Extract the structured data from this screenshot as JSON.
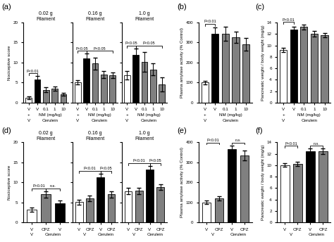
{
  "chart_data": [
    {
      "type": "bar",
      "panel_label": "(a)",
      "title": "0.02 g\nFilament",
      "ylabel": "Nociceptive score",
      "categories": [
        "V",
        "V",
        "0.1",
        "1",
        "10"
      ],
      "values": [
        1.2,
        5.8,
        3.2,
        3.5,
        2.1
      ],
      "errors": [
        0.3,
        0.8,
        0.6,
        0.5,
        0.4
      ],
      "colors": [
        "white",
        "black",
        "gray",
        "gray",
        "gray"
      ],
      "ylim": [
        0,
        20
      ],
      "yticks": [
        0,
        5,
        10,
        15,
        20
      ],
      "annotations": [
        {
          "text": "P<0.01",
          "span": [
            0,
            1
          ]
        }
      ],
      "x_groups": [
        [
          {
            "text": "+",
            "span": [
              0,
              0
            ]
          },
          {
            "text": "NM (mg/kg)",
            "span": [
              1,
              4
            ]
          }
        ],
        [
          {
            "text": "V",
            "span": [
              0,
              0
            ]
          },
          {
            "text": "Cerulein",
            "span": [
              1,
              4
            ]
          }
        ]
      ]
    },
    {
      "type": "bar",
      "title": "0.16 g\nFilament",
      "tick_labels": "x",
      "categories": [
        "V",
        "V",
        "0.1",
        "1",
        "10"
      ],
      "values": [
        5.1,
        11.0,
        9.8,
        7.0,
        6.8
      ],
      "errors": [
        0.5,
        1.2,
        1.5,
        0.8,
        0.7
      ],
      "colors": [
        "white",
        "black",
        "gray",
        "gray",
        "gray"
      ],
      "ylim": [
        0,
        20
      ],
      "yticks": [
        0,
        5,
        10,
        15,
        20
      ],
      "annotations": [
        {
          "text": "P<0.05",
          "span": [
            0,
            1
          ]
        },
        {
          "text": "P<0.05",
          "span": [
            1,
            4
          ]
        }
      ],
      "x_groups": [
        [
          {
            "text": "+",
            "span": [
              0,
              0
            ]
          },
          {
            "text": "NM (mg/kg)",
            "span": [
              1,
              4
            ]
          }
        ],
        [
          {
            "text": "V",
            "span": [
              0,
              0
            ]
          },
          {
            "text": "Cerulein",
            "span": [
              1,
              4
            ]
          }
        ]
      ]
    },
    {
      "type": "bar",
      "title": "1.0 g\nFilament",
      "tick_labels": "x",
      "categories": [
        "V",
        "V",
        "0.1",
        "1",
        "10"
      ],
      "values": [
        6.8,
        12.0,
        10.2,
        8.3,
        4.5
      ],
      "errors": [
        1.0,
        1.5,
        2.5,
        1.5,
        1.8
      ],
      "colors": [
        "white",
        "black",
        "gray",
        "gray",
        "gray"
      ],
      "ylim": [
        0,
        20
      ],
      "yticks": [
        0,
        5,
        10,
        15,
        20
      ],
      "annotations": [
        {
          "text": "P<0.05",
          "span": [
            0,
            1
          ]
        },
        {
          "text": "P<0.05",
          "span": [
            1,
            4
          ]
        }
      ],
      "x_groups": [
        [
          {
            "text": "+",
            "span": [
              0,
              0
            ]
          },
          {
            "text": "NM (mg/kg)",
            "span": [
              1,
              4
            ]
          }
        ],
        [
          {
            "text": "V",
            "span": [
              0,
              0
            ]
          },
          {
            "text": "Cerulein",
            "span": [
              1,
              4
            ]
          }
        ]
      ]
    },
    {
      "type": "bar",
      "panel_label": "(b)",
      "ylabel": "Plasma amylase activity (% Control)",
      "categories": [
        "V",
        "V",
        "0.1",
        "1",
        "10"
      ],
      "values": [
        100,
        345,
        345,
        325,
        290
      ],
      "errors": [
        8,
        30,
        35,
        28,
        32
      ],
      "colors": [
        "white",
        "black",
        "gray",
        "gray",
        "gray"
      ],
      "ylim": [
        0,
        400
      ],
      "yticks": [
        0,
        100,
        200,
        300,
        400
      ],
      "annotations": [
        {
          "text": "P<0.01",
          "span": [
            0,
            1
          ]
        }
      ],
      "x_groups": [
        [
          {
            "text": "+",
            "span": [
              0,
              0
            ]
          },
          {
            "text": "NM (mg/kg)",
            "span": [
              1,
              4
            ]
          }
        ],
        [
          {
            "text": "V",
            "span": [
              0,
              0
            ]
          },
          {
            "text": "Cerulein",
            "span": [
              1,
              4
            ]
          }
        ]
      ]
    },
    {
      "type": "bar",
      "panel_label": "(c)",
      "ylabel": "Pancreatic weight / body weight (mg/g)",
      "categories": [
        "V",
        "V",
        "0.1",
        "1",
        "10"
      ],
      "values": [
        9.2,
        12.8,
        13.2,
        12.0,
        11.8
      ],
      "errors": [
        0.4,
        0.5,
        0.4,
        0.5,
        0.4
      ],
      "colors": [
        "white",
        "black",
        "gray",
        "gray",
        "gray"
      ],
      "ylim": [
        0,
        14
      ],
      "yticks": [
        0,
        2,
        4,
        6,
        8,
        10,
        12,
        14
      ],
      "annotations": [
        {
          "text": "P<0.01",
          "span": [
            0,
            1
          ]
        }
      ],
      "x_groups": [
        [
          {
            "text": "+",
            "span": [
              0,
              0
            ]
          },
          {
            "text": "NM (mg/kg)",
            "span": [
              1,
              4
            ]
          }
        ],
        [
          {
            "text": "V",
            "span": [
              0,
              0
            ]
          },
          {
            "text": "Cerulein",
            "span": [
              1,
              4
            ]
          }
        ]
      ]
    },
    {
      "type": "bar",
      "panel_label": "(d)",
      "title": "0.02 g\nFilament",
      "ylabel": "Nociceptive score",
      "categories": [
        "V",
        "CPZ",
        "V"
      ],
      "values": [
        3.2,
        7.0,
        4.8
      ],
      "errors": [
        0.5,
        0.8,
        0.6
      ],
      "colors": [
        "white",
        "gray",
        "black"
      ],
      "ylim": [
        0,
        20
      ],
      "yticks": [
        0,
        5,
        10,
        15,
        20
      ],
      "annotations": [
        {
          "text": "P<0.01",
          "span": [
            0,
            1
          ]
        },
        {
          "text": "n.s.",
          "span": [
            1,
            2
          ]
        }
      ],
      "x_groups": [
        [
          {
            "text": "V",
            "span": [
              0,
              0
            ]
          },
          {
            "text": "Cerulein",
            "span": [
              1,
              2
            ]
          }
        ]
      ]
    },
    {
      "type": "bar",
      "title": "0.16 g\nFilament",
      "tick_labels": "x",
      "categories": [
        "V",
        "CPZ",
        "V",
        "CPZ"
      ],
      "values": [
        5.1,
        6.0,
        11.2,
        7.0
      ],
      "errors": [
        0.6,
        0.7,
        1.0,
        0.8
      ],
      "colors": [
        "white",
        "gray",
        "black",
        "gray"
      ],
      "ylim": [
        0,
        20
      ],
      "yticks": [
        0,
        5,
        10,
        15,
        20
      ],
      "annotations": [
        {
          "text": "P<0.01",
          "span": [
            0,
            2
          ]
        },
        {
          "text": "P<0.05",
          "span": [
            2,
            3
          ]
        }
      ],
      "x_groups": [
        [
          {
            "text": "V",
            "span": [
              0,
              1
            ]
          },
          {
            "text": "Cerulein",
            "span": [
              2,
              3
            ]
          }
        ]
      ]
    },
    {
      "type": "bar",
      "title": "1.0 g\nFilament",
      "tick_labels": "x",
      "categories": [
        "V",
        "CPZ",
        "V",
        "CPZ"
      ],
      "values": [
        7.8,
        7.9,
        13.2,
        8.8
      ],
      "errors": [
        0.8,
        0.8,
        0.9,
        0.7
      ],
      "colors": [
        "white",
        "gray",
        "black",
        "gray"
      ],
      "ylim": [
        0,
        20
      ],
      "yticks": [
        0,
        5,
        10,
        15,
        20
      ],
      "annotations": [
        {
          "text": "P<0.01",
          "span": [
            0,
            2
          ]
        },
        {
          "text": "P<0.05",
          "span": [
            2,
            3
          ]
        }
      ],
      "x_groups": [
        [
          {
            "text": "V",
            "span": [
              0,
              1
            ]
          },
          {
            "text": "Cerulein",
            "span": [
              2,
              3
            ]
          }
        ]
      ]
    },
    {
      "type": "bar",
      "panel_label": "(e)",
      "ylabel": "Plasma amylase activity (% Control)",
      "categories": [
        "V",
        "CPZ",
        "V",
        "CPZ"
      ],
      "values": [
        100,
        120,
        365,
        335
      ],
      "errors": [
        8,
        12,
        20,
        25
      ],
      "colors": [
        "white",
        "gray",
        "black",
        "gray"
      ],
      "ylim": [
        0,
        400
      ],
      "yticks": [
        0,
        100,
        200,
        300,
        400
      ],
      "annotations": [
        {
          "text": "P<0.01",
          "span": [
            0,
            1
          ]
        },
        {
          "text": "n.s.",
          "span": [
            2,
            3
          ]
        }
      ],
      "x_groups": [
        [
          {
            "text": "V",
            "span": [
              0,
              1
            ]
          },
          {
            "text": "Cerulein",
            "span": [
              2,
              3
            ]
          }
        ]
      ]
    },
    {
      "type": "bar",
      "panel_label": "(f)",
      "ylabel": "Pancreatic weight / body weight (mg/g)",
      "categories": [
        "V",
        "CPZ",
        "V",
        "CPZ"
      ],
      "values": [
        10.0,
        10.2,
        12.4,
        12.4
      ],
      "errors": [
        0.3,
        0.4,
        0.5,
        0.5
      ],
      "colors": [
        "white",
        "gray",
        "black",
        "gray"
      ],
      "ylim": [
        0,
        14
      ],
      "yticks": [
        0,
        2,
        4,
        6,
        8,
        10,
        12,
        14
      ],
      "annotations": [
        {
          "text": "P<0.01",
          "span": [
            0,
            1
          ]
        },
        {
          "text": "n.s.",
          "span": [
            2,
            3
          ]
        }
      ],
      "x_groups": [
        [
          {
            "text": "V",
            "span": [
              0,
              1
            ]
          },
          {
            "text": "Cerulein",
            "span": [
              2,
              3
            ]
          }
        ]
      ]
    }
  ]
}
